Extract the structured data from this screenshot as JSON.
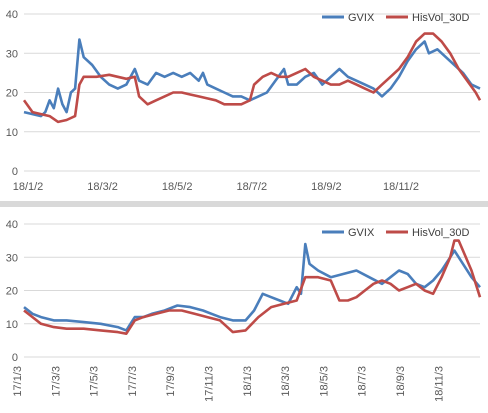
{
  "chart_data": [
    {
      "type": "line",
      "title": "",
      "xlabel": "",
      "ylabel": "",
      "ylim": [
        0,
        40
      ],
      "yticks": [
        "0",
        "10",
        "20",
        "30",
        "40"
      ],
      "xticks": [
        "18/1/2",
        "18/3/2",
        "18/5/2",
        "18/7/2",
        "18/9/2",
        "18/11/2"
      ],
      "grid": true,
      "legend": "top-right",
      "series": [
        {
          "name": "GVIX",
          "color": "#4a7ebb",
          "points": [
            [
              0,
              15
            ],
            [
              4,
              14.5
            ],
            [
              8,
              14
            ],
            [
              10,
              15
            ],
            [
              12,
              18
            ],
            [
              14,
              16
            ],
            [
              16,
              21
            ],
            [
              18,
              17
            ],
            [
              20,
              15
            ],
            [
              22,
              20
            ],
            [
              24,
              21
            ],
            [
              26,
              33.5
            ],
            [
              28,
              29
            ],
            [
              32,
              27
            ],
            [
              36,
              24
            ],
            [
              40,
              22
            ],
            [
              44,
              21
            ],
            [
              48,
              22
            ],
            [
              52,
              26
            ],
            [
              54,
              23
            ],
            [
              58,
              22
            ],
            [
              62,
              25
            ],
            [
              66,
              24
            ],
            [
              70,
              25
            ],
            [
              74,
              24
            ],
            [
              78,
              25
            ],
            [
              82,
              23
            ],
            [
              84,
              25
            ],
            [
              86,
              22
            ],
            [
              90,
              21
            ],
            [
              94,
              20
            ],
            [
              98,
              19
            ],
            [
              102,
              19
            ],
            [
              106,
              18
            ],
            [
              110,
              19
            ],
            [
              114,
              20
            ],
            [
              118,
              23
            ],
            [
              122,
              26
            ],
            [
              124,
              22
            ],
            [
              128,
              22
            ],
            [
              132,
              24
            ],
            [
              136,
              25
            ],
            [
              140,
              22
            ],
            [
              144,
              24
            ],
            [
              148,
              26
            ],
            [
              152,
              24
            ],
            [
              156,
              23
            ],
            [
              160,
              22
            ],
            [
              164,
              21
            ],
            [
              168,
              19
            ],
            [
              172,
              21
            ],
            [
              176,
              24
            ],
            [
              180,
              28
            ],
            [
              184,
              31
            ],
            [
              188,
              33
            ],
            [
              190,
              30
            ],
            [
              194,
              31
            ],
            [
              198,
              29
            ],
            [
              202,
              27
            ],
            [
              206,
              25
            ],
            [
              210,
              22
            ],
            [
              214,
              21
            ]
          ]
        },
        {
          "name": "HisVol_30D",
          "color": "#be4b48",
          "points": [
            [
              0,
              18
            ],
            [
              4,
              15
            ],
            [
              8,
              14.5
            ],
            [
              12,
              14
            ],
            [
              16,
              12.5
            ],
            [
              20,
              13
            ],
            [
              24,
              14
            ],
            [
              26,
              22
            ],
            [
              28,
              24
            ],
            [
              34,
              24
            ],
            [
              40,
              24.5
            ],
            [
              48,
              23.5
            ],
            [
              52,
              24
            ],
            [
              54,
              19
            ],
            [
              58,
              17
            ],
            [
              62,
              18
            ],
            [
              66,
              19
            ],
            [
              70,
              20
            ],
            [
              74,
              20
            ],
            [
              78,
              19.5
            ],
            [
              82,
              19
            ],
            [
              86,
              18.5
            ],
            [
              90,
              18
            ],
            [
              94,
              17
            ],
            [
              98,
              17
            ],
            [
              102,
              17
            ],
            [
              106,
              18
            ],
            [
              108,
              22
            ],
            [
              112,
              24
            ],
            [
              116,
              25
            ],
            [
              120,
              24
            ],
            [
              124,
              24
            ],
            [
              128,
              25
            ],
            [
              132,
              26
            ],
            [
              136,
              24
            ],
            [
              140,
              23
            ],
            [
              144,
              22
            ],
            [
              148,
              22
            ],
            [
              152,
              23
            ],
            [
              156,
              22
            ],
            [
              160,
              21
            ],
            [
              164,
              20
            ],
            [
              168,
              22
            ],
            [
              172,
              24
            ],
            [
              176,
              26
            ],
            [
              180,
              29
            ],
            [
              184,
              33
            ],
            [
              188,
              35
            ],
            [
              192,
              35
            ],
            [
              196,
              33
            ],
            [
              200,
              30
            ],
            [
              204,
              26
            ],
            [
              208,
              23
            ],
            [
              212,
              20
            ],
            [
              214,
              18
            ]
          ]
        }
      ]
    },
    {
      "type": "line",
      "title": "",
      "xlabel": "",
      "ylabel": "",
      "ylim": [
        0,
        40
      ],
      "yticks": [
        "0",
        "10",
        "20",
        "30",
        "40"
      ],
      "xticks": [
        "17/1/3",
        "17/3/3",
        "17/5/3",
        "17/7/3",
        "17/9/3",
        "17/11/3",
        "18/1/3",
        "18/3/3",
        "18/5/3",
        "18/7/3",
        "18/9/3",
        "18/11/3"
      ],
      "grid": true,
      "legend": "top-right",
      "series": [
        {
          "name": "GVIX",
          "color": "#4a7ebb",
          "points": [
            [
              0,
              15
            ],
            [
              4,
              13
            ],
            [
              8,
              12
            ],
            [
              14,
              11
            ],
            [
              20,
              11
            ],
            [
              28,
              10.5
            ],
            [
              36,
              10
            ],
            [
              44,
              9
            ],
            [
              48,
              8
            ],
            [
              52,
              12
            ],
            [
              56,
              12
            ],
            [
              60,
              13
            ],
            [
              66,
              14
            ],
            [
              72,
              15.5
            ],
            [
              78,
              15
            ],
            [
              84,
              14
            ],
            [
              88,
              13
            ],
            [
              92,
              12
            ],
            [
              98,
              11
            ],
            [
              104,
              11
            ],
            [
              108,
              14
            ],
            [
              112,
              19
            ],
            [
              116,
              18
            ],
            [
              120,
              17
            ],
            [
              124,
              16
            ],
            [
              128,
              21
            ],
            [
              130,
              19
            ],
            [
              132,
              34
            ],
            [
              134,
              28
            ],
            [
              138,
              26
            ],
            [
              144,
              24
            ],
            [
              150,
              25
            ],
            [
              156,
              26
            ],
            [
              162,
              24
            ],
            [
              168,
              22
            ],
            [
              172,
              24
            ],
            [
              176,
              26
            ],
            [
              180,
              25
            ],
            [
              184,
              22
            ],
            [
              188,
              21
            ],
            [
              192,
              23
            ],
            [
              196,
              26
            ],
            [
              200,
              30
            ],
            [
              202,
              32
            ],
            [
              206,
              28
            ],
            [
              210,
              24
            ],
            [
              214,
              21
            ]
          ]
        },
        {
          "name": "HisVol_30D",
          "color": "#be4b48",
          "points": [
            [
              0,
              14
            ],
            [
              4,
              12
            ],
            [
              8,
              10
            ],
            [
              14,
              9
            ],
            [
              20,
              8.5
            ],
            [
              28,
              8.5
            ],
            [
              36,
              8
            ],
            [
              44,
              7.5
            ],
            [
              48,
              7
            ],
            [
              52,
              11
            ],
            [
              56,
              12
            ],
            [
              62,
              13
            ],
            [
              68,
              14
            ],
            [
              74,
              14
            ],
            [
              80,
              13
            ],
            [
              86,
              12
            ],
            [
              92,
              11
            ],
            [
              98,
              7.5
            ],
            [
              104,
              8
            ],
            [
              110,
              12
            ],
            [
              116,
              15
            ],
            [
              122,
              16
            ],
            [
              128,
              17
            ],
            [
              132,
              24
            ],
            [
              138,
              24
            ],
            [
              144,
              23
            ],
            [
              148,
              17
            ],
            [
              152,
              17
            ],
            [
              156,
              18
            ],
            [
              160,
              20
            ],
            [
              164,
              22
            ],
            [
              168,
              23
            ],
            [
              172,
              22
            ],
            [
              176,
              20
            ],
            [
              180,
              21
            ],
            [
              184,
              22
            ],
            [
              188,
              20
            ],
            [
              192,
              19
            ],
            [
              196,
              24
            ],
            [
              200,
              30
            ],
            [
              202,
              35
            ],
            [
              204,
              35
            ],
            [
              206,
              32
            ],
            [
              210,
              26
            ],
            [
              214,
              18
            ]
          ]
        }
      ]
    }
  ]
}
